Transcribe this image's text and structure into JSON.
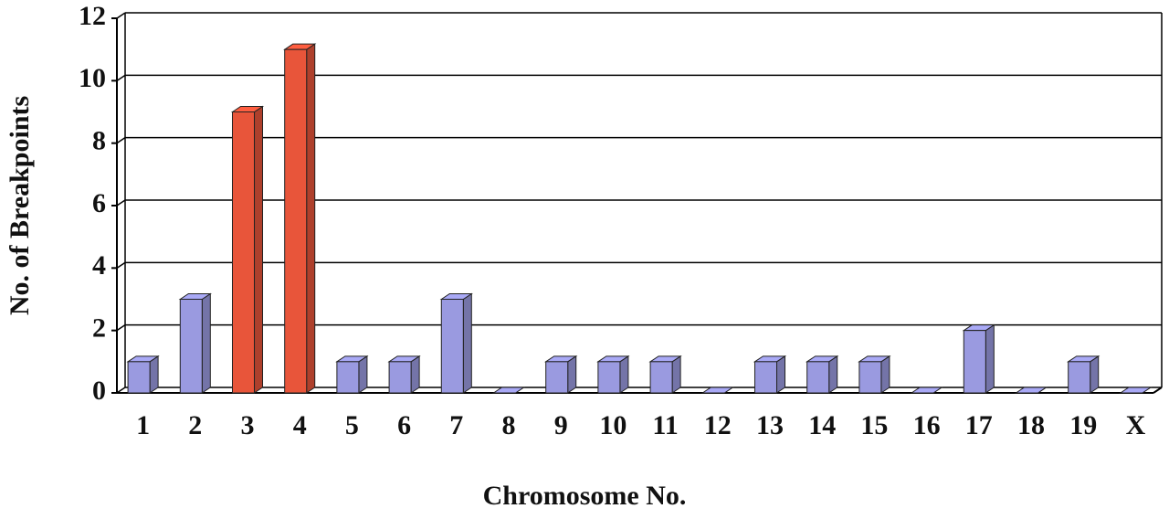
{
  "chart_data": {
    "type": "bar",
    "x_label": "Chromosome No.",
    "y_label": "No. of Breakpoints",
    "categories": [
      "1",
      "2",
      "3",
      "4",
      "5",
      "6",
      "7",
      "8",
      "9",
      "10",
      "11",
      "12",
      "13",
      "14",
      "15",
      "16",
      "17",
      "18",
      "19",
      "X"
    ],
    "values": [
      1,
      3,
      9,
      11,
      1,
      1,
      3,
      0,
      1,
      1,
      1,
      0,
      1,
      1,
      1,
      0,
      2,
      0,
      1,
      0
    ],
    "colors": [
      "#9a9ae0",
      "#9a9ae0",
      "#e8553a",
      "#e8553a",
      "#9a9ae0",
      "#9a9ae0",
      "#9a9ae0",
      "#9a9ae0",
      "#9a9ae0",
      "#9a9ae0",
      "#9a9ae0",
      "#9a9ae0",
      "#9a9ae0",
      "#9a9ae0",
      "#9a9ae0",
      "#9a9ae0",
      "#9a9ae0",
      "#9a9ae0",
      "#9a9ae0",
      "#9a9ae0"
    ],
    "ylim": [
      0,
      12
    ],
    "yticks": [
      0,
      2,
      4,
      6,
      8,
      10,
      12
    ],
    "grid": true
  }
}
